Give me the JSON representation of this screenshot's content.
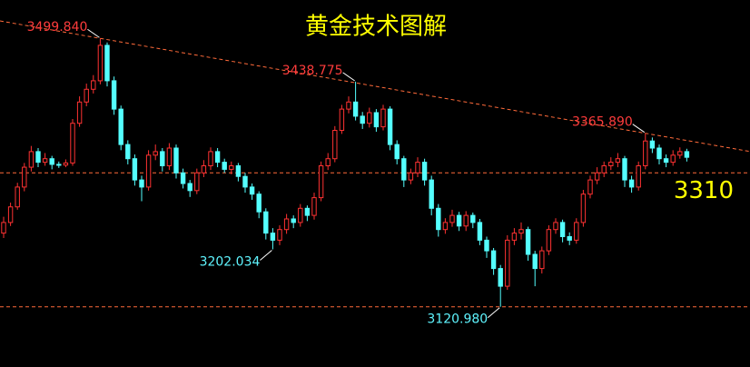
{
  "chart_data": {
    "type": "candlestick",
    "title": "黄金技术图解",
    "ylim": [
      3036,
      3554
    ],
    "colors": {
      "up": "#ff3232",
      "down": "#54ffff",
      "title": "#ffff00",
      "line": "#ff6a3a",
      "high_label": "#ff3c3c",
      "low_label": "#5ff5ff",
      "target": "#ffff00"
    },
    "open": [
      3225,
      3240,
      3262,
      3290,
      3318,
      3340,
      3325,
      3330,
      3322,
      3321,
      3324,
      3380,
      3410,
      3428,
      3440,
      3490,
      3440,
      3400,
      3350,
      3330,
      3300,
      3290,
      3335,
      3340,
      3320,
      3345,
      3310,
      3295,
      3285,
      3310,
      3320,
      3340,
      3325,
      3315,
      3320,
      3305,
      3290,
      3280,
      3255,
      3225,
      3215,
      3230,
      3245,
      3240,
      3260,
      3250,
      3275,
      3320,
      3330,
      3370,
      3400,
      3410,
      3390,
      3380,
      3395,
      3375,
      3400,
      3350,
      3330,
      3300,
      3310,
      3325,
      3300,
      3260,
      3230,
      3240,
      3250,
      3235,
      3250,
      3240,
      3215,
      3200,
      3175,
      3150,
      3215,
      3225,
      3230,
      3195,
      3175,
      3200,
      3230,
      3240,
      3220,
      3215,
      3240,
      3280,
      3300,
      3310,
      3320,
      3325,
      3330,
      3300,
      3290,
      3320,
      3355,
      3345,
      3330,
      3325,
      3335,
      3340
    ],
    "high": [
      3248,
      3268,
      3296,
      3324,
      3348,
      3345,
      3338,
      3334,
      3326,
      3329,
      3386,
      3418,
      3436,
      3448,
      3499.84,
      3494,
      3446,
      3405,
      3356,
      3336,
      3306,
      3342,
      3350,
      3345,
      3352,
      3350,
      3316,
      3300,
      3316,
      3328,
      3346,
      3345,
      3330,
      3326,
      3324,
      3310,
      3295,
      3284,
      3260,
      3232,
      3236,
      3252,
      3250,
      3266,
      3264,
      3282,
      3326,
      3338,
      3376,
      3406,
      3418,
      3438.775,
      3396,
      3402,
      3400,
      3406,
      3404,
      3356,
      3334,
      3316,
      3332,
      3330,
      3306,
      3266,
      3246,
      3258,
      3255,
      3256,
      3254,
      3245,
      3220,
      3204,
      3180,
      3222,
      3232,
      3240,
      3234,
      3200,
      3206,
      3236,
      3246,
      3244,
      3226,
      3246,
      3286,
      3306,
      3318,
      3326,
      3332,
      3338,
      3334,
      3306,
      3326,
      3365.89,
      3360,
      3350,
      3336,
      3342,
      3346,
      3344
    ],
    "low": [
      3218,
      3235,
      3258,
      3284,
      3312,
      3318,
      3320,
      3315,
      3317,
      3318,
      3320,
      3375,
      3404,
      3422,
      3435,
      3432,
      3392,
      3342,
      3322,
      3292,
      3270,
      3285,
      3328,
      3312,
      3314,
      3302,
      3288,
      3276,
      3280,
      3304,
      3314,
      3318,
      3310,
      3308,
      3298,
      3282,
      3272,
      3246,
      3216,
      3202.034,
      3208,
      3224,
      3232,
      3234,
      3242,
      3244,
      3270,
      3314,
      3325,
      3365,
      3394,
      3384,
      3372,
      3374,
      3368,
      3370,
      3342,
      3322,
      3290,
      3294,
      3304,
      3292,
      3250,
      3220,
      3224,
      3234,
      3228,
      3228,
      3232,
      3208,
      3190,
      3166,
      3120.98,
      3145,
      3208,
      3216,
      3186,
      3150,
      3168,
      3194,
      3224,
      3212,
      3208,
      3210,
      3234,
      3274,
      3294,
      3304,
      3314,
      3318,
      3290,
      3282,
      3285,
      3315,
      3338,
      3322,
      3318,
      3320,
      3330,
      3326
    ],
    "close": [
      3240,
      3262,
      3290,
      3318,
      3340,
      3325,
      3330,
      3322,
      3321,
      3324,
      3380,
      3410,
      3428,
      3440,
      3490,
      3440,
      3400,
      3350,
      3330,
      3300,
      3290,
      3335,
      3340,
      3320,
      3345,
      3310,
      3295,
      3285,
      3310,
      3320,
      3340,
      3325,
      3315,
      3320,
      3305,
      3290,
      3280,
      3255,
      3225,
      3215,
      3230,
      3245,
      3240,
      3260,
      3250,
      3275,
      3320,
      3330,
      3370,
      3400,
      3410,
      3390,
      3380,
      3395,
      3375,
      3400,
      3350,
      3330,
      3300,
      3310,
      3325,
      3300,
      3260,
      3230,
      3240,
      3250,
      3235,
      3250,
      3240,
      3215,
      3200,
      3175,
      3150,
      3215,
      3225,
      3230,
      3195,
      3175,
      3200,
      3230,
      3240,
      3220,
      3215,
      3240,
      3280,
      3300,
      3310,
      3320,
      3325,
      3330,
      3300,
      3290,
      3320,
      3355,
      3345,
      3330,
      3325,
      3335,
      3340,
      3332
    ],
    "annotations": [
      {
        "value": 3499.84,
        "label": "3499.840"
      },
      {
        "value": 3438.775,
        "label": "3438.775"
      },
      {
        "value": 3365.89,
        "label": "3365.890"
      },
      {
        "value": 3202.034,
        "label": "3202.034"
      },
      {
        "value": 3120.98,
        "label": "3120.980"
      }
    ],
    "target": 3310
  }
}
